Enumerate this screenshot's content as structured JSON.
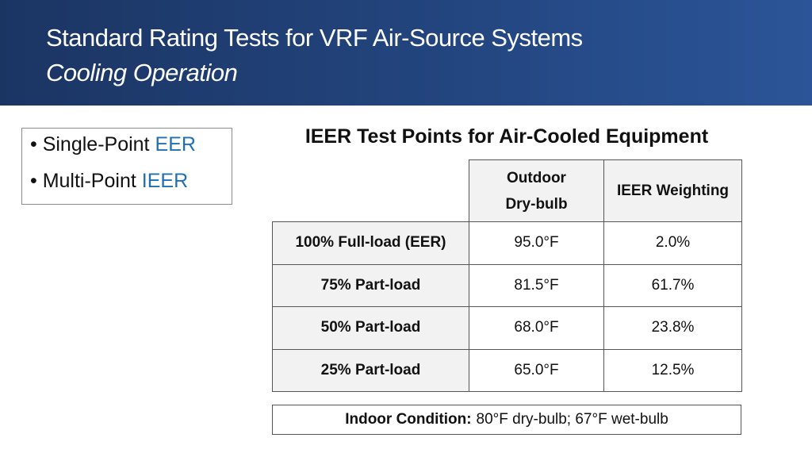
{
  "header": {
    "title": "Standard Rating Tests for VRF Air-Source Systems",
    "subtitle": "Cooling Operation"
  },
  "bullets": [
    {
      "text": "Single-Point",
      "highlight": "EER"
    },
    {
      "text": "Multi-Point",
      "highlight": "IEER"
    }
  ],
  "table": {
    "title": "IEER Test Points for Air-Cooled Equipment",
    "columns": [
      "Outdoor Dry-bulb",
      "IEER Weighting"
    ],
    "rows": [
      [
        "100% Full-load (EER)",
        "95.0°F",
        "2.0%"
      ],
      [
        "75% Part-load",
        "81.5°F",
        "61.7%"
      ],
      [
        "50% Part-load",
        "68.0°F",
        "23.8%"
      ],
      [
        "25% Part-load",
        "65.0°F",
        "12.5%"
      ]
    ]
  },
  "note": {
    "label": "Indoor Condition:",
    "text": "80°F dry-bulb; 67°F wet-bulb"
  }
}
